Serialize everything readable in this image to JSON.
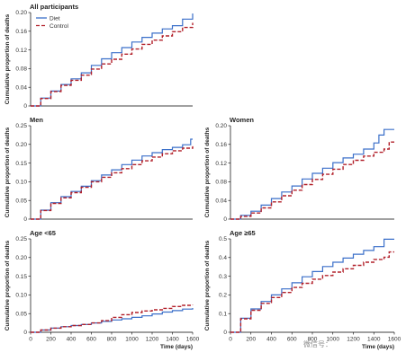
{
  "colors": {
    "Diet": "#3a6fc9",
    "Control": "#b2202a"
  },
  "watermark_text": "微信号：",
  "chart_data": [
    {
      "type": "line",
      "title": "All participants",
      "ylabel": "Cumulative proportion of deaths",
      "xlabel": "",
      "xlim": [
        0,
        1600
      ],
      "ylim": [
        0,
        0.2
      ],
      "xticks": [],
      "yticks": [
        0,
        0.04,
        0.08,
        0.12,
        0.16,
        0.2
      ],
      "legend": {
        "position": "top-left",
        "entries": [
          "Diet",
          "Control"
        ]
      },
      "series": [
        {
          "name": "Diet",
          "style": "solid",
          "x": [
            0,
            100,
            200,
            300,
            400,
            500,
            600,
            700,
            800,
            900,
            1000,
            1100,
            1200,
            1300,
            1400,
            1500,
            1600
          ],
          "y": [
            0,
            0.017,
            0.032,
            0.046,
            0.058,
            0.071,
            0.087,
            0.101,
            0.114,
            0.125,
            0.137,
            0.147,
            0.156,
            0.165,
            0.172,
            0.186,
            0.198
          ]
        },
        {
          "name": "Control",
          "style": "dashed",
          "x": [
            0,
            100,
            200,
            300,
            400,
            500,
            600,
            700,
            800,
            900,
            1000,
            1100,
            1200,
            1300,
            1400,
            1500,
            1600
          ],
          "y": [
            0,
            0.016,
            0.031,
            0.044,
            0.055,
            0.066,
            0.079,
            0.09,
            0.1,
            0.111,
            0.122,
            0.132,
            0.141,
            0.15,
            0.159,
            0.168,
            0.178
          ]
        }
      ]
    },
    {
      "type": "line",
      "title": "Men",
      "ylabel": "Cumulative proportion of deaths",
      "xlabel": "",
      "xlim": [
        0,
        1600
      ],
      "ylim": [
        0,
        0.25
      ],
      "xticks": [],
      "yticks": [
        0,
        0.05,
        0.1,
        0.15,
        0.2,
        0.25
      ],
      "series": [
        {
          "name": "Diet",
          "style": "solid",
          "x": [
            0,
            100,
            200,
            300,
            400,
            500,
            600,
            700,
            800,
            900,
            1000,
            1100,
            1200,
            1300,
            1400,
            1500,
            1580,
            1600
          ],
          "y": [
            0,
            0.024,
            0.044,
            0.06,
            0.074,
            0.088,
            0.103,
            0.118,
            0.132,
            0.146,
            0.158,
            0.169,
            0.178,
            0.186,
            0.192,
            0.199,
            0.214,
            0.214
          ]
        },
        {
          "name": "Control",
          "style": "dashed",
          "x": [
            0,
            100,
            200,
            300,
            400,
            500,
            600,
            700,
            800,
            900,
            1000,
            1100,
            1200,
            1300,
            1400,
            1500,
            1600
          ],
          "y": [
            0,
            0.023,
            0.042,
            0.057,
            0.071,
            0.085,
            0.1,
            0.112,
            0.124,
            0.135,
            0.146,
            0.156,
            0.166,
            0.175,
            0.183,
            0.19,
            0.195
          ]
        }
      ]
    },
    {
      "type": "line",
      "title": "Women",
      "ylabel": "Cumulative proportion of deaths",
      "xlabel": "",
      "xlim": [
        0,
        1600
      ],
      "ylim": [
        0,
        0.2
      ],
      "xticks": [],
      "yticks": [
        0,
        0.04,
        0.08,
        0.12,
        0.16,
        0.2
      ],
      "series": [
        {
          "name": "Diet",
          "style": "solid",
          "x": [
            0,
            100,
            200,
            300,
            400,
            500,
            600,
            700,
            800,
            900,
            1000,
            1100,
            1200,
            1300,
            1400,
            1450,
            1500,
            1600
          ],
          "y": [
            0,
            0.008,
            0.017,
            0.03,
            0.044,
            0.058,
            0.071,
            0.086,
            0.098,
            0.109,
            0.121,
            0.131,
            0.139,
            0.15,
            0.163,
            0.18,
            0.192,
            0.192
          ]
        },
        {
          "name": "Control",
          "style": "dashed",
          "x": [
            0,
            100,
            200,
            300,
            400,
            500,
            600,
            700,
            800,
            900,
            1000,
            1100,
            1200,
            1300,
            1400,
            1500,
            1550,
            1600
          ],
          "y": [
            0,
            0.006,
            0.013,
            0.024,
            0.037,
            0.05,
            0.062,
            0.074,
            0.085,
            0.096,
            0.107,
            0.117,
            0.126,
            0.135,
            0.143,
            0.15,
            0.165,
            0.165
          ]
        }
      ]
    },
    {
      "type": "line",
      "title": "Age <65",
      "ylabel": "Cumulative proportion of deaths",
      "xlabel": "Time (days)",
      "xlim": [
        0,
        1600
      ],
      "ylim": [
        0,
        0.25
      ],
      "xticks": [
        0,
        200,
        400,
        600,
        800,
        1000,
        1200,
        1400,
        1600
      ],
      "yticks": [
        0,
        0.05,
        0.1,
        0.15,
        0.2,
        0.25
      ],
      "series": [
        {
          "name": "Diet",
          "style": "solid",
          "x": [
            0,
            100,
            200,
            300,
            400,
            500,
            600,
            700,
            800,
            900,
            1000,
            1100,
            1200,
            1300,
            1400,
            1500,
            1600
          ],
          "y": [
            0,
            0.006,
            0.011,
            0.015,
            0.018,
            0.021,
            0.025,
            0.029,
            0.033,
            0.036,
            0.04,
            0.044,
            0.049,
            0.054,
            0.058,
            0.062,
            0.065
          ]
        },
        {
          "name": "Control",
          "style": "dashed",
          "x": [
            0,
            100,
            200,
            300,
            400,
            500,
            600,
            700,
            800,
            900,
            1000,
            1100,
            1200,
            1300,
            1400,
            1500,
            1600
          ],
          "y": [
            0,
            0.006,
            0.011,
            0.015,
            0.018,
            0.021,
            0.025,
            0.031,
            0.04,
            0.047,
            0.053,
            0.057,
            0.06,
            0.064,
            0.069,
            0.072,
            0.073
          ]
        }
      ]
    },
    {
      "type": "line",
      "title": "Age ≥65",
      "ylabel": "Cumulative proportion of deaths",
      "xlabel": "Time (days)",
      "xlim": [
        0,
        1600
      ],
      "ylim": [
        0,
        0.5
      ],
      "xticks": [
        0,
        200,
        400,
        600,
        800,
        1000,
        1200,
        1400,
        1600
      ],
      "yticks": [
        0,
        0.1,
        0.2,
        0.3,
        0.4,
        0.5
      ],
      "series": [
        {
          "name": "Diet",
          "style": "solid",
          "x": [
            0,
            100,
            200,
            300,
            400,
            500,
            600,
            700,
            800,
            900,
            1000,
            1100,
            1200,
            1300,
            1400,
            1500,
            1600
          ],
          "y": [
            0,
            0.075,
            0.125,
            0.165,
            0.2,
            0.232,
            0.265,
            0.297,
            0.325,
            0.352,
            0.375,
            0.397,
            0.418,
            0.438,
            0.458,
            0.498,
            0.498
          ]
        },
        {
          "name": "Control",
          "style": "dashed",
          "x": [
            0,
            100,
            200,
            300,
            400,
            500,
            600,
            700,
            800,
            900,
            1000,
            1100,
            1200,
            1300,
            1400,
            1500,
            1550,
            1600
          ],
          "y": [
            0,
            0.072,
            0.118,
            0.155,
            0.186,
            0.213,
            0.24,
            0.262,
            0.284,
            0.304,
            0.322,
            0.34,
            0.358,
            0.375,
            0.39,
            0.402,
            0.43,
            0.43
          ]
        }
      ]
    }
  ]
}
